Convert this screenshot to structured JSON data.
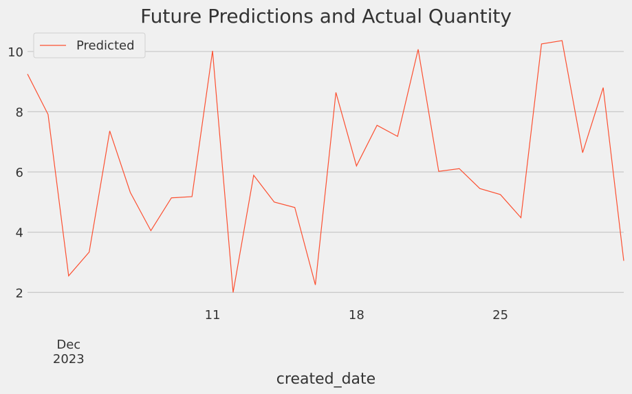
{
  "chart_data": {
    "type": "line",
    "title": "Future Predictions and Actual Quantity",
    "xlabel": "created_date",
    "x": [
      "2023-12-02",
      "2023-12-03",
      "2023-12-04",
      "2023-12-05",
      "2023-12-06",
      "2023-12-07",
      "2023-12-08",
      "2023-12-09",
      "2023-12-10",
      "2023-12-11",
      "2023-12-12",
      "2023-12-13",
      "2023-12-14",
      "2023-12-15",
      "2023-12-16",
      "2023-12-17",
      "2023-12-18",
      "2023-12-19",
      "2023-12-20",
      "2023-12-21",
      "2023-12-22",
      "2023-12-23",
      "2023-12-24",
      "2023-12-25",
      "2023-12-26",
      "2023-12-27",
      "2023-12-28",
      "2023-12-29",
      "2023-12-30",
      "2023-12-31"
    ],
    "series": [
      {
        "name": "Predicted",
        "color": "#fc4f30",
        "values": [
          9.25,
          7.91,
          2.55,
          3.34,
          7.36,
          5.32,
          4.05,
          5.14,
          5.18,
          10.02,
          2.0,
          5.89,
          5.0,
          4.82,
          2.25,
          8.64,
          6.2,
          7.55,
          7.18,
          10.07,
          6.02,
          6.11,
          5.45,
          5.25,
          4.48,
          10.25,
          10.36,
          6.64,
          8.8,
          3.05
        ]
      }
    ],
    "xlim": [
      "2023-12-02",
      "2023-12-31"
    ],
    "xticks": [
      {
        "value": "2023-12-04",
        "label": "Dec\n2023"
      },
      {
        "value": "2023-12-11",
        "label": "11"
      },
      {
        "value": "2023-12-18",
        "label": "18"
      },
      {
        "value": "2023-12-25",
        "label": "25"
      }
    ],
    "ylim": [
      1.55,
      10.75
    ],
    "yticks": [
      2,
      4,
      6,
      8,
      10
    ],
    "grid": true,
    "legend": "upper left"
  }
}
